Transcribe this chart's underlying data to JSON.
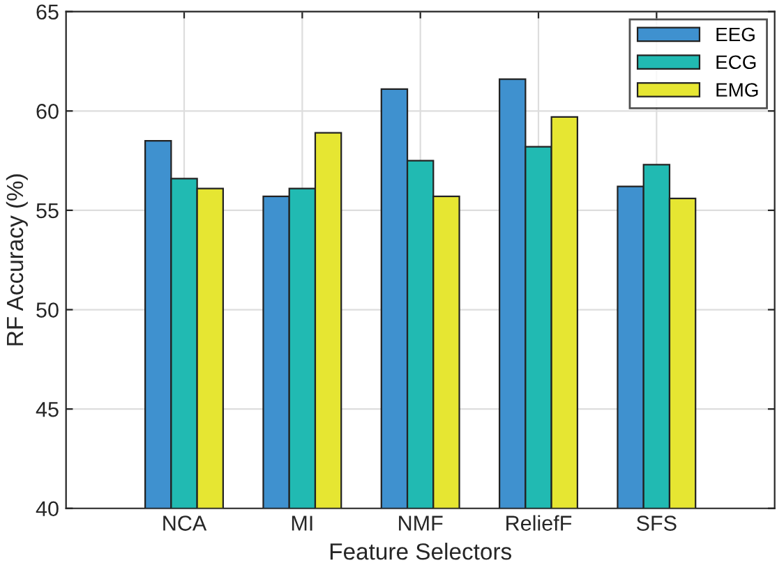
{
  "chart_data": {
    "type": "bar",
    "xlabel": "Feature Selectors",
    "ylabel": "RF Accuracy (%)",
    "categories": [
      "NCA",
      "MI",
      "NMF",
      "ReliefF",
      "SFS"
    ],
    "series": [
      {
        "name": "EEG",
        "color": "#3f91cf",
        "values": [
          58.5,
          55.7,
          61.1,
          61.6,
          56.2
        ]
      },
      {
        "name": "ECG",
        "color": "#21bab2",
        "values": [
          56.6,
          56.1,
          57.5,
          58.2,
          57.3
        ]
      },
      {
        "name": "EMG",
        "color": "#e6e632",
        "values": [
          56.1,
          58.9,
          55.7,
          59.7,
          55.6
        ]
      }
    ],
    "ylim": [
      40,
      65
    ],
    "yticks": [
      40,
      45,
      50,
      55,
      60,
      65
    ],
    "grid": true,
    "legend": "top right"
  }
}
